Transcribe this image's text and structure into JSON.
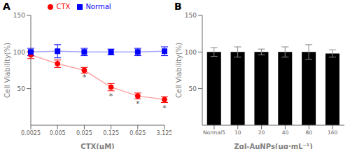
{
  "chart_data": [
    {
      "type": "line",
      "title": "A",
      "xlabel": "CTX(μM)",
      "ylabel": "Cell Viability(%)",
      "categories": [
        "0.0025",
        "0.005",
        "0.025",
        "0.125",
        "0.625",
        "3.125"
      ],
      "series": [
        {
          "name": "CTX",
          "color": "#FF0000",
          "marker": "circle",
          "values": [
            96,
            84,
            75,
            52,
            40,
            35
          ],
          "errors": [
            5,
            5,
            4,
            5,
            4,
            4
          ]
        },
        {
          "name": "Normal",
          "color": "#0000FF",
          "marker": "square",
          "values": [
            100,
            101,
            100,
            100,
            100,
            101
          ],
          "errors": [
            5,
            9,
            5,
            4,
            5,
            6
          ]
        }
      ],
      "ylim": [
        0,
        150
      ],
      "yticks": [
        50,
        100,
        150
      ],
      "legend": "top",
      "annotations": [
        {
          "text": "*",
          "x": "0.025",
          "y": 72
        },
        {
          "text": "*",
          "x": "0.125",
          "y": 47
        },
        {
          "text": "*",
          "x": "0.625",
          "y": 36
        },
        {
          "text": "*",
          "x": "3.125",
          "y": 30
        }
      ]
    },
    {
      "type": "bar",
      "title": "B",
      "xlabel": "ZgI-AuNPs(μg·mL⁻¹)",
      "ylabel": "Cell Viability(%)",
      "categories": [
        "Normal5",
        "10",
        "20",
        "40",
        "80",
        "160"
      ],
      "values": [
        100,
        100,
        100,
        100,
        100,
        98
      ],
      "errors": [
        6,
        7,
        4,
        7,
        10,
        5
      ],
      "color": "#000000",
      "ylim": [
        0,
        150
      ],
      "yticks": [
        50,
        100,
        150
      ]
    }
  ]
}
